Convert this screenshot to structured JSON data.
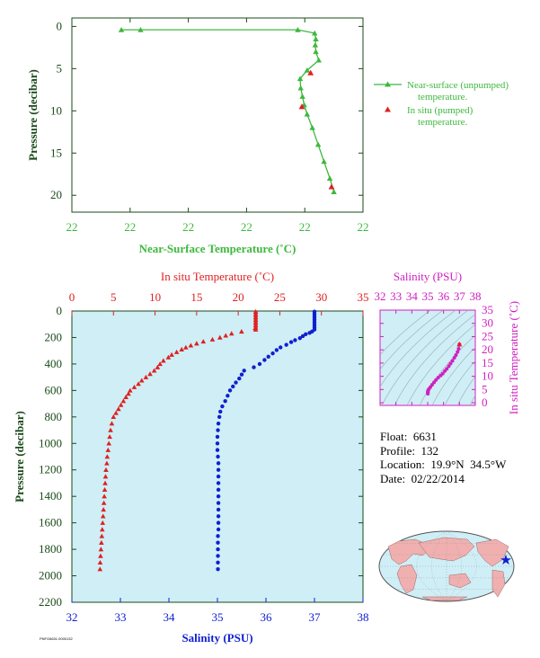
{
  "colors": {
    "near_surface_green": "#3db83d",
    "in_situ_red": "#e02020",
    "salinity_blue": "#1020d0",
    "magenta": "#d020c0",
    "axis_dark_green": "#1a4a1a",
    "plot_bg": "#cfeef6"
  },
  "info": {
    "float_label": "Float:",
    "float_value": "6631",
    "profile_label": "Profile:",
    "profile_value": "132",
    "location_label": "Location:",
    "location_value": "19.9°N  34.5°W",
    "date_label": "Date:",
    "date_value": "02/22/2014"
  },
  "stamp_text": "PNFG6631.0000132",
  "chart_data": [
    {
      "type": "line",
      "id": "near-surface",
      "xlabel": "Near-Surface Temperature (˚C)",
      "ylabel": "Pressure (decibar)",
      "x_tick_labels": [
        "22",
        "22",
        "22",
        "22",
        "22",
        "22"
      ],
      "y_ticks": [
        0,
        5,
        10,
        15,
        20
      ],
      "xlim": [
        22.0,
        22.5
      ],
      "ylim": [
        22,
        -1
      ],
      "legend": "right",
      "series": [
        {
          "name": "Near-surface (unpumped) temperature.",
          "color": "#3db83d",
          "marker": "triangle",
          "points": [
            [
              22.085,
              0.4
            ],
            [
              22.118,
              0.4
            ],
            [
              22.388,
              0.4
            ],
            [
              22.417,
              0.8
            ],
            [
              22.419,
              1.5
            ],
            [
              22.418,
              2.2
            ],
            [
              22.419,
              3.0
            ],
            [
              22.424,
              4.0
            ],
            [
              22.404,
              5.2
            ],
            [
              22.392,
              6.2
            ],
            [
              22.393,
              7.3
            ],
            [
              22.396,
              8.3
            ],
            [
              22.399,
              9.3
            ],
            [
              22.404,
              10.4
            ],
            [
              22.413,
              12.0
            ],
            [
              22.423,
              14.0
            ],
            [
              22.433,
              16.0
            ],
            [
              22.443,
              18.0
            ],
            [
              22.45,
              19.6
            ]
          ]
        },
        {
          "name": "In situ (pumped) temperature.",
          "color": "#e02020",
          "marker": "triangle",
          "points": [
            [
              22.41,
              5.5
            ],
            [
              22.395,
              9.5
            ],
            [
              22.446,
              19.0
            ]
          ]
        }
      ]
    },
    {
      "type": "scatter",
      "id": "main-profile",
      "top_axis_label": "In situ Temperature (˚C)",
      "bottom_axis_label": "Salinity (PSU)",
      "ylabel": "Pressure (decibar)",
      "temp_ticks": [
        0,
        5,
        10,
        15,
        20,
        25,
        30,
        35
      ],
      "temp_lim": [
        0,
        35
      ],
      "sal_ticks": [
        32,
        33,
        34,
        35,
        36,
        37,
        38
      ],
      "sal_lim": [
        32,
        38
      ],
      "p_ticks": [
        0,
        200,
        400,
        600,
        800,
        1000,
        1200,
        1400,
        1600,
        1800,
        2000,
        2200
      ],
      "p_lim": [
        0,
        2200
      ],
      "series": [
        {
          "name": "In situ Temperature (˚C)",
          "color": "#e02020",
          "marker": "triangle",
          "points": [
            [
              22.1,
              5
            ],
            [
              22.1,
              25
            ],
            [
              22.1,
              45
            ],
            [
              22.1,
              65
            ],
            [
              22.1,
              85
            ],
            [
              22.1,
              105
            ],
            [
              22.1,
              125
            ],
            [
              22.1,
              140
            ],
            [
              20.4,
              155
            ],
            [
              19.2,
              170
            ],
            [
              18.5,
              185
            ],
            [
              17.8,
              200
            ],
            [
              16.9,
              215
            ],
            [
              15.8,
              230
            ],
            [
              15.0,
              245
            ],
            [
              14.3,
              260
            ],
            [
              13.7,
              275
            ],
            [
              13.2,
              290
            ],
            [
              12.6,
              310
            ],
            [
              12.0,
              330
            ],
            [
              11.6,
              350
            ],
            [
              11.0,
              375
            ],
            [
              10.6,
              400
            ],
            [
              10.3,
              425
            ],
            [
              9.9,
              450
            ],
            [
              9.4,
              475
            ],
            [
              8.9,
              500
            ],
            [
              8.4,
              525
            ],
            [
              8.0,
              550
            ],
            [
              7.5,
              575
            ],
            [
              7.0,
              600
            ],
            [
              6.8,
              625
            ],
            [
              6.5,
              650
            ],
            [
              6.2,
              680
            ],
            [
              5.9,
              710
            ],
            [
              5.6,
              740
            ],
            [
              5.3,
              770
            ],
            [
              5.0,
              800
            ],
            [
              4.8,
              850
            ],
            [
              4.65,
              900
            ],
            [
              4.55,
              950
            ],
            [
              4.45,
              1000
            ],
            [
              4.35,
              1050
            ],
            [
              4.25,
              1100
            ],
            [
              4.2,
              1150
            ],
            [
              4.1,
              1200
            ],
            [
              4.05,
              1250
            ],
            [
              4.0,
              1300
            ],
            [
              3.95,
              1350
            ],
            [
              3.9,
              1400
            ],
            [
              3.85,
              1450
            ],
            [
              3.8,
              1500
            ],
            [
              3.75,
              1550
            ],
            [
              3.7,
              1600
            ],
            [
              3.65,
              1650
            ],
            [
              3.6,
              1700
            ],
            [
              3.55,
              1750
            ],
            [
              3.5,
              1800
            ],
            [
              3.45,
              1850
            ],
            [
              3.4,
              1900
            ],
            [
              3.38,
              1950
            ]
          ]
        },
        {
          "name": "Salinity (PSU)",
          "color": "#1020d0",
          "marker": "circle",
          "points": [
            [
              37.0,
              5
            ],
            [
              37.0,
              25
            ],
            [
              37.0,
              45
            ],
            [
              37.0,
              65
            ],
            [
              37.0,
              85
            ],
            [
              37.0,
              105
            ],
            [
              37.0,
              125
            ],
            [
              37.0,
              140
            ],
            [
              36.95,
              155
            ],
            [
              36.9,
              165
            ],
            [
              36.82,
              175
            ],
            [
              36.76,
              190
            ],
            [
              36.7,
              205
            ],
            [
              36.6,
              220
            ],
            [
              36.52,
              235
            ],
            [
              36.42,
              255
            ],
            [
              36.3,
              275
            ],
            [
              36.22,
              295
            ],
            [
              36.14,
              320
            ],
            [
              36.05,
              345
            ],
            [
              35.97,
              370
            ],
            [
              35.87,
              400
            ],
            [
              35.75,
              425
            ],
            [
              35.55,
              450
            ],
            [
              35.5,
              480
            ],
            [
              35.45,
              510
            ],
            [
              35.38,
              540
            ],
            [
              35.32,
              570
            ],
            [
              35.26,
              600
            ],
            [
              35.21,
              640
            ],
            [
              35.16,
              680
            ],
            [
              35.1,
              720
            ],
            [
              35.06,
              760
            ],
            [
              35.04,
              800
            ],
            [
              35.02,
              850
            ],
            [
              35.01,
              900
            ],
            [
              35.0,
              950
            ],
            [
              35.0,
              1000
            ],
            [
              35.0,
              1050
            ],
            [
              35.01,
              1100
            ],
            [
              35.02,
              1150
            ],
            [
              35.02,
              1200
            ],
            [
              35.02,
              1250
            ],
            [
              35.02,
              1300
            ],
            [
              35.02,
              1350
            ],
            [
              35.02,
              1400
            ],
            [
              35.02,
              1450
            ],
            [
              35.02,
              1500
            ],
            [
              35.02,
              1550
            ],
            [
              35.02,
              1600
            ],
            [
              35.02,
              1650
            ],
            [
              35.01,
              1700
            ],
            [
              35.01,
              1750
            ],
            [
              35.01,
              1800
            ],
            [
              35.01,
              1850
            ],
            [
              35.01,
              1900
            ],
            [
              35.01,
              1950
            ]
          ]
        }
      ]
    },
    {
      "type": "scatter",
      "id": "ts-diagram",
      "title": "Salinity (PSU)",
      "ylabel": "In situ Temperature (˚C)",
      "sal_ticks": [
        32,
        33,
        34,
        35,
        36,
        37,
        38
      ],
      "sal_lim": [
        32,
        38
      ],
      "temp_ticks": [
        0,
        5,
        10,
        15,
        20,
        25,
        30,
        35
      ],
      "temp_lim": [
        -1,
        35
      ],
      "series": [
        {
          "name": "T-S",
          "color": "#d020c0",
          "marker": "circle",
          "points": [
            [
              37.0,
              22.1
            ],
            [
              36.95,
              20.4
            ],
            [
              36.88,
              19.2
            ],
            [
              36.78,
              18.0
            ],
            [
              36.68,
              17.0
            ],
            [
              36.56,
              15.8
            ],
            [
              36.44,
              14.8
            ],
            [
              36.33,
              13.8
            ],
            [
              36.2,
              12.8
            ],
            [
              36.08,
              12.0
            ],
            [
              35.95,
              11.0
            ],
            [
              35.82,
              10.3
            ],
            [
              35.66,
              9.5
            ],
            [
              35.52,
              8.6
            ],
            [
              35.4,
              7.7
            ],
            [
              35.28,
              6.8
            ],
            [
              35.17,
              5.9
            ],
            [
              35.08,
              5.2
            ],
            [
              35.03,
              4.7
            ],
            [
              35.01,
              4.3
            ],
            [
              35.01,
              4.0
            ],
            [
              35.01,
              3.7
            ],
            [
              35.01,
              3.4
            ]
          ]
        }
      ]
    }
  ]
}
